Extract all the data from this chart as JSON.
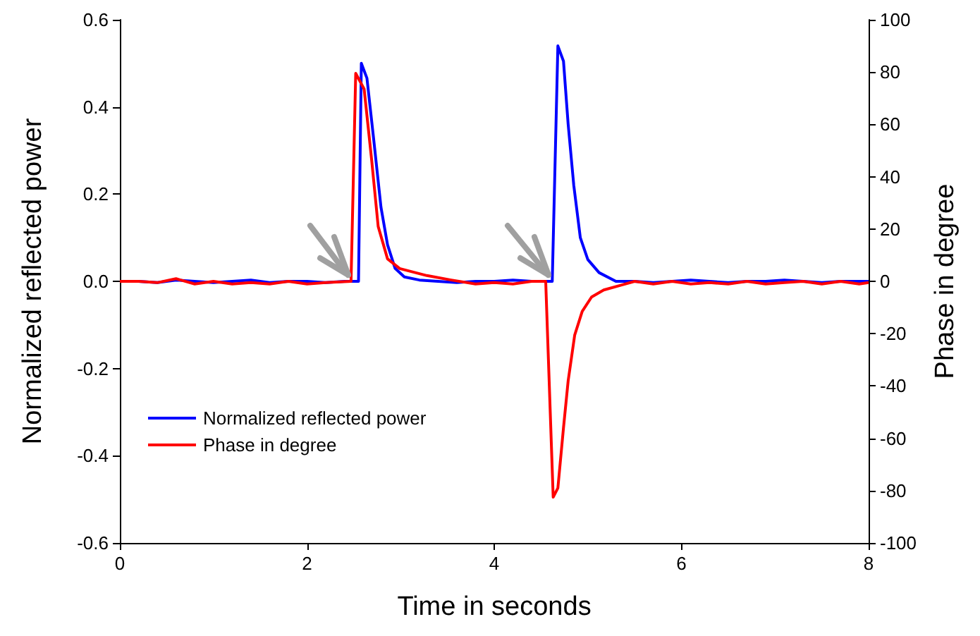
{
  "chart_data": {
    "type": "line",
    "xlabel": "Time in seconds",
    "ylabel": "Normalized reflected power",
    "y2label": "Phase in degree",
    "xlim": [
      0,
      8
    ],
    "xticks": [
      0,
      2,
      4,
      6,
      8
    ],
    "ylim": [
      -0.6,
      0.6
    ],
    "yticks": [
      -0.6,
      -0.4,
      -0.2,
      {
        "value": 0,
        "label": "0.0"
      },
      0.2,
      0.4,
      0.6
    ],
    "y2lim": [
      -100,
      100
    ],
    "y2ticks": [
      -100,
      -80,
      -60,
      -40,
      -20,
      0,
      20,
      40,
      60,
      80,
      100
    ],
    "grid": false,
    "legend": "bottom left",
    "marker": "none",
    "line_style": "solid",
    "series": [
      {
        "name": "Normalized reflected power",
        "color": "#0000ff",
        "x": [
          0,
          0.2,
          0.4,
          0.6,
          0.8,
          1.0,
          1.2,
          1.4,
          1.6,
          1.8,
          2.0,
          2.2,
          2.4,
          2.55,
          2.58,
          2.64,
          2.71,
          2.79,
          2.86,
          2.94,
          3.04,
          3.2,
          3.4,
          3.6,
          3.8,
          4.0,
          4.2,
          4.4,
          4.62,
          4.68,
          4.74,
          4.79,
          4.85,
          4.92,
          5.0,
          5.12,
          5.3,
          5.5,
          5.7,
          5.9,
          6.1,
          6.3,
          6.5,
          6.7,
          6.9,
          7.1,
          7.3,
          7.5,
          7.7,
          7.9,
          8.0
        ],
        "values": [
          0,
          0,
          -0.003,
          0.003,
          0,
          -0.003,
          0,
          0.003,
          -0.003,
          0,
          0,
          -0.003,
          0,
          0,
          0.5,
          0.466,
          0.33,
          0.17,
          0.084,
          0.03,
          0.01,
          0.003,
          0,
          -0.003,
          0,
          0,
          0.003,
          0,
          0,
          0.54,
          0.505,
          0.36,
          0.22,
          0.1,
          0.05,
          0.02,
          0,
          0,
          -0.003,
          0,
          0.003,
          0,
          -0.003,
          0,
          0,
          0.003,
          0,
          -0.003,
          0,
          0,
          0
        ]
      },
      {
        "name": "Phase in degree",
        "color": "#ff0000",
        "axis": "y2",
        "x": [
          0,
          0.2,
          0.4,
          0.6,
          0.8,
          1.0,
          1.2,
          1.4,
          1.6,
          1.8,
          2.0,
          2.2,
          2.47,
          2.52,
          2.61,
          2.69,
          2.76,
          2.86,
          2.99,
          3.28,
          3.54,
          3.8,
          4.0,
          4.2,
          4.4,
          4.55,
          4.63,
          4.68,
          4.74,
          4.79,
          4.86,
          4.94,
          5.04,
          5.17,
          5.35,
          5.5,
          5.7,
          5.9,
          6.1,
          6.3,
          6.5,
          6.7,
          6.9,
          7.1,
          7.3,
          7.5,
          7.7,
          7.9,
          8.0
        ],
        "values": [
          0,
          0,
          -0.5,
          1,
          -1,
          0,
          -1,
          -0.5,
          -1,
          0,
          -1,
          -0.5,
          0,
          79.5,
          73.5,
          46.5,
          21,
          8.6,
          4.9,
          2.2,
          0.5,
          -1,
          -0.5,
          -1,
          0,
          0,
          -82.5,
          -79,
          -56,
          -38,
          -20.5,
          -11.5,
          -6,
          -3.3,
          -1.5,
          0,
          -1,
          0,
          -1,
          -0.5,
          -1,
          0,
          -1,
          -0.5,
          0,
          -1,
          0,
          -1,
          -0.5
        ]
      }
    ]
  }
}
